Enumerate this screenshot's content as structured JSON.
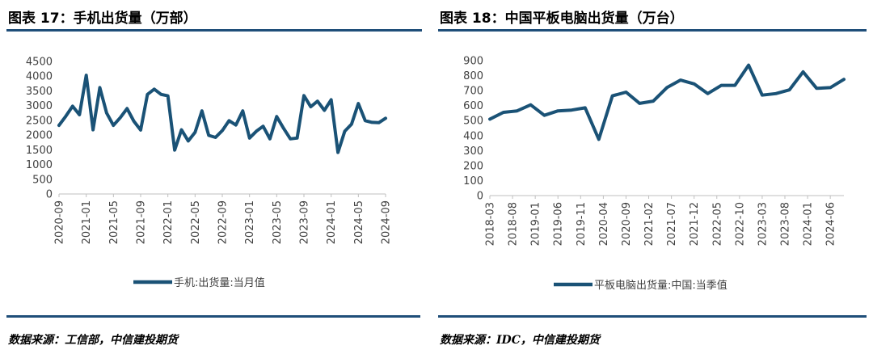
{
  "charts": [
    {
      "id": "left",
      "title": "图表 17：手机出货量（万部）",
      "source": "数据来源：工信部，中信建投期货",
      "chart_data": {
        "type": "line",
        "title": "图表 17：手机出货量（万部）",
        "ylim": [
          0,
          4500
        ],
        "yticks": [
          0,
          500,
          1000,
          1500,
          2000,
          2500,
          3000,
          3500,
          4000,
          4500
        ],
        "x_tick_labels": [
          "2020-09",
          "2021-01",
          "2021-05",
          "2021-09",
          "2022-01",
          "2022-05",
          "2022-09",
          "2023-01",
          "2023-05",
          "2023-09",
          "2024-01",
          "2024-05",
          "2024-09"
        ],
        "grid": false,
        "legend_position": "bottom",
        "series": [
          {
            "name": "手机:出货量:当月值",
            "color": "#1a5276",
            "x": [
              "2020-09",
              "2020-10",
              "2020-11",
              "2020-12",
              "2021-01",
              "2021-02",
              "2021-03",
              "2021-04",
              "2021-05",
              "2021-06",
              "2021-07",
              "2021-08",
              "2021-09",
              "2021-10",
              "2021-11",
              "2021-12",
              "2022-01",
              "2022-02",
              "2022-03",
              "2022-04",
              "2022-05",
              "2022-06",
              "2022-07",
              "2022-08",
              "2022-09",
              "2022-10",
              "2022-11",
              "2022-12",
              "2023-01",
              "2023-02",
              "2023-03",
              "2023-04",
              "2023-05",
              "2023-06",
              "2023-07",
              "2023-08",
              "2023-09",
              "2023-10",
              "2023-11",
              "2023-12",
              "2024-01",
              "2024-02",
              "2024-03",
              "2024-04",
              "2024-05",
              "2024-06",
              "2024-07",
              "2024-08",
              "2024-09"
            ],
            "values": [
              2330,
              2640,
              2980,
              2690,
              4030,
              2180,
              3610,
              2750,
              2330,
              2590,
              2900,
              2470,
              2170,
              3380,
              3560,
              3380,
              3330,
              1490,
              2180,
              1800,
              2090,
              2820,
              1990,
              1920,
              2150,
              2490,
              2340,
              2820,
              1900,
              2130,
              2300,
              1870,
              2630,
              2230,
              1870,
              1900,
              3340,
              2960,
              3150,
              2840,
              3200,
              1410,
              2130,
              2370,
              3070,
              2490,
              2430,
              2420,
              2570
            ]
          }
        ]
      }
    },
    {
      "id": "right",
      "title": "图表 18：中国平板电脑出货量（万台）",
      "source": "数据来源：IDC，中信建投期货",
      "chart_data": {
        "type": "line",
        "title": "图表 18：中国平板电脑出货量（万台）",
        "ylim": [
          0,
          900
        ],
        "yticks": [
          0,
          100,
          200,
          300,
          400,
          500,
          600,
          700,
          800,
          900
        ],
        "x_tick_labels": [
          "2018-03",
          "2018-08",
          "2019-01",
          "2019-06",
          "2019-11",
          "2020-04",
          "2020-09",
          "2021-02",
          "2021-07",
          "2021-12",
          "2022-05",
          "2022-10",
          "2023-03",
          "2023-08",
          "2024-01",
          "2024-06"
        ],
        "grid": false,
        "legend_position": "bottom",
        "series": [
          {
            "name": "平板电脑出货量:中国:当季值",
            "color": "#1a5276",
            "x": [
              "2018-03",
              "2018-06",
              "2018-09",
              "2018-12",
              "2019-03",
              "2019-06",
              "2019-09",
              "2019-12",
              "2020-03",
              "2020-06",
              "2020-09",
              "2020-12",
              "2021-03",
              "2021-06",
              "2021-09",
              "2021-12",
              "2022-03",
              "2022-06",
              "2022-09",
              "2022-12",
              "2023-03",
              "2023-06",
              "2023-09",
              "2023-12",
              "2024-03",
              "2024-06",
              "2024-09"
            ],
            "values": [
              510,
              555,
              565,
              605,
              535,
              565,
              570,
              585,
              375,
              665,
              690,
              615,
              630,
              720,
              770,
              745,
              680,
              735,
              735,
              870,
              670,
              680,
              705,
              825,
              715,
              720,
              775
            ]
          }
        ]
      }
    }
  ]
}
